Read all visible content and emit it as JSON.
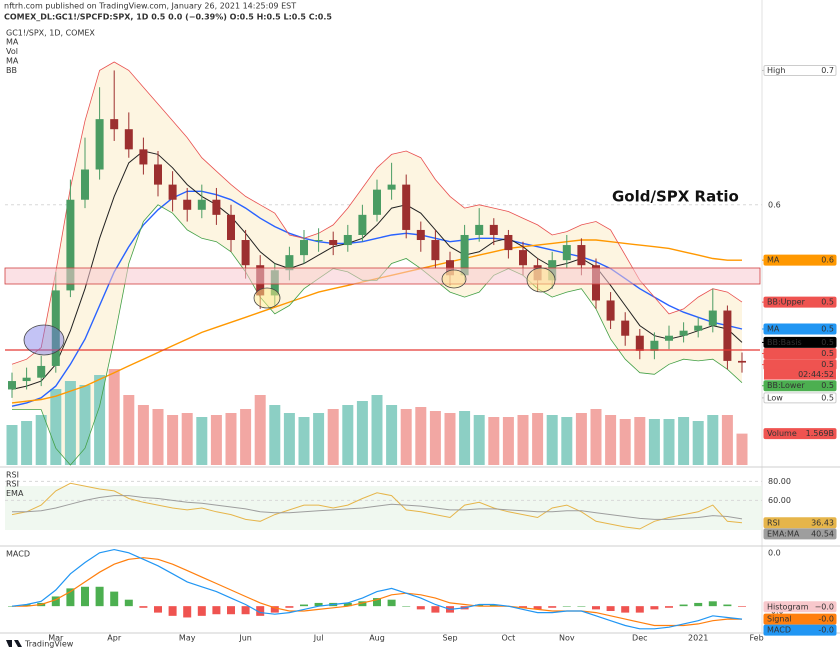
{
  "header": {
    "line1": "nftrh.com published on TradingView.com, January 26, 2021 14:25:09 EST",
    "line2": "COMEX_DL:GC1!/SPCFD:SPX, 1D  0.5 0.0 (−0.39%) O:0.5 H:0.5 L:0.5 C:0.5"
  },
  "footer": {
    "brand": "TradingView"
  },
  "chart_data": [
    {
      "type": "candlestick",
      "title": "GC1!/SPX, 1D, COMEX",
      "legend": [
        "MA",
        "Vol",
        "MA",
        "BB"
      ],
      "annotation": "Gold/SPX Ratio",
      "categories": [
        null,
        null,
        null,
        "Mar",
        null,
        null,
        null,
        "Apr",
        null,
        null,
        null,
        null,
        "May",
        null,
        null,
        null,
        "Jun",
        null,
        null,
        null,
        null,
        "Jul",
        null,
        null,
        null,
        "Aug",
        null,
        null,
        null,
        null,
        "Sep",
        null,
        null,
        null,
        "Oct",
        null,
        null,
        null,
        "Nov",
        null,
        null,
        null,
        null,
        "Dec",
        null,
        null,
        null,
        "2021",
        null,
        null,
        null,
        "Feb"
      ],
      "open": [
        0.49,
        0.495,
        0.497,
        0.504,
        0.549,
        0.603,
        0.621,
        0.651,
        0.645,
        0.633,
        0.624,
        0.612,
        0.603,
        0.597,
        0.603,
        0.594,
        0.579,
        0.564,
        0.546,
        0.561,
        0.57,
        0.579,
        0.579,
        0.576,
        0.582,
        0.594,
        0.609,
        0.612,
        0.585,
        0.579,
        0.567,
        0.558,
        0.582,
        0.588,
        0.582,
        0.573,
        0.564,
        0.555,
        0.567,
        0.576,
        0.564,
        0.543,
        0.531,
        0.522,
        0.513,
        0.519,
        0.522,
        0.525,
        0.528,
        0.537,
        0.507,
        null
      ],
      "high": [
        0.5,
        0.503,
        0.51,
        0.56,
        0.615,
        0.64,
        0.67,
        0.68,
        0.655,
        0.64,
        0.632,
        0.62,
        0.61,
        0.612,
        0.61,
        0.6,
        0.585,
        0.57,
        0.565,
        0.575,
        0.585,
        0.586,
        0.584,
        0.588,
        0.6,
        0.615,
        0.625,
        0.618,
        0.59,
        0.585,
        0.572,
        0.588,
        0.598,
        0.592,
        0.585,
        0.578,
        0.568,
        0.572,
        0.582,
        0.58,
        0.568,
        0.548,
        0.536,
        0.526,
        0.524,
        0.528,
        0.53,
        0.533,
        0.55,
        0.54,
        0.512,
        null
      ],
      "low": [
        0.485,
        0.49,
        0.492,
        0.5,
        0.545,
        0.598,
        0.615,
        0.638,
        0.628,
        0.618,
        0.605,
        0.596,
        0.59,
        0.592,
        0.588,
        0.572,
        0.556,
        0.538,
        0.54,
        0.555,
        0.565,
        0.572,
        0.57,
        0.572,
        0.578,
        0.59,
        0.603,
        0.58,
        0.572,
        0.562,
        0.552,
        0.555,
        0.578,
        0.576,
        0.568,
        0.558,
        0.548,
        0.55,
        0.562,
        0.558,
        0.538,
        0.526,
        0.516,
        0.508,
        0.508,
        0.514,
        0.518,
        0.521,
        0.524,
        0.502,
        0.5,
        null
      ],
      "close": [
        0.495,
        0.497,
        0.504,
        0.549,
        0.603,
        0.621,
        0.651,
        0.645,
        0.633,
        0.624,
        0.612,
        0.603,
        0.597,
        0.603,
        0.594,
        0.579,
        0.564,
        0.546,
        0.561,
        0.57,
        0.579,
        0.579,
        0.576,
        0.582,
        0.594,
        0.609,
        0.612,
        0.585,
        0.579,
        0.567,
        0.558,
        0.582,
        0.588,
        0.582,
        0.573,
        0.564,
        0.555,
        0.567,
        0.576,
        0.564,
        0.543,
        0.531,
        0.522,
        0.513,
        0.519,
        0.522,
        0.525,
        0.528,
        0.537,
        0.507,
        0.506,
        null
      ],
      "colors": {
        "up": "#4a9c63",
        "down": "#9c2f2f"
      },
      "ylim": [
        0.445,
        0.716
      ],
      "yticks": [
        0.6
      ],
      "grid": true,
      "band_fill": "#fdf5e1",
      "series": [
        {
          "color": "#2962ff",
          "width": 1.4,
          "values": [
            0.48,
            0.482,
            0.485,
            0.492,
            0.505,
            0.52,
            0.54,
            0.56,
            0.575,
            0.588,
            0.597,
            0.604,
            0.608,
            0.608,
            0.606,
            0.603,
            0.598,
            0.592,
            0.587,
            0.583,
            0.58,
            0.578,
            0.577,
            0.577,
            0.578,
            0.58,
            0.582,
            0.583,
            0.582,
            0.58,
            0.578,
            0.579,
            0.58,
            0.58,
            0.579,
            0.577,
            0.575,
            0.573,
            0.571,
            0.569,
            0.566,
            0.562,
            0.556,
            0.55,
            0.545,
            0.54,
            0.536,
            0.533,
            0.53,
            0.528,
            0.526,
            null
          ]
        },
        {
          "color": "#ff9800",
          "width": 1.4,
          "values": [
            0.482,
            0.483,
            0.484,
            0.486,
            0.489,
            0.492,
            0.496,
            0.5,
            0.504,
            0.508,
            0.512,
            0.516,
            0.52,
            0.524,
            0.527,
            0.53,
            0.533,
            0.536,
            0.539,
            0.542,
            0.545,
            0.548,
            0.55,
            0.552,
            0.554,
            0.556,
            0.558,
            0.56,
            0.562,
            0.564,
            0.566,
            0.568,
            0.57,
            0.572,
            0.574,
            0.575,
            0.576,
            0.577,
            0.578,
            0.579,
            0.579,
            0.578,
            0.577,
            0.576,
            0.575,
            0.574,
            0.572,
            0.57,
            0.568,
            0.567,
            0.567,
            null
          ]
        },
        {
          "color": "#222222",
          "width": 1,
          "values": [
            0.49,
            0.492,
            0.495,
            0.505,
            0.525,
            0.55,
            0.58,
            0.605,
            0.625,
            0.632,
            0.63,
            0.622,
            0.612,
            0.605,
            0.6,
            0.593,
            0.583,
            0.572,
            0.565,
            0.562,
            0.565,
            0.57,
            0.575,
            0.577,
            0.58,
            0.588,
            0.598,
            0.6,
            0.595,
            0.585,
            0.575,
            0.57,
            0.572,
            0.578,
            0.58,
            0.575,
            0.568,
            0.563,
            0.565,
            0.568,
            0.563,
            0.552,
            0.54,
            0.528,
            0.522,
            0.52,
            0.522,
            0.525,
            0.528,
            0.526,
            0.518,
            null
          ]
        },
        {
          "color": "#e85050",
          "width": 0.8,
          "band": true,
          "values": [
            0.505,
            0.508,
            0.515,
            0.56,
            0.61,
            0.65,
            0.68,
            0.685,
            0.68,
            0.67,
            0.66,
            0.65,
            0.64,
            0.628,
            0.62,
            0.612,
            0.605,
            0.6,
            0.595,
            0.582,
            0.58,
            0.583,
            0.588,
            0.598,
            0.61,
            0.622,
            0.63,
            0.632,
            0.628,
            0.615,
            0.605,
            0.598,
            0.6,
            0.598,
            0.596,
            0.592,
            0.588,
            0.582,
            0.584,
            0.588,
            0.59,
            0.585,
            0.57,
            0.555,
            0.545,
            0.535,
            0.538,
            0.545,
            0.55,
            0.548,
            0.542,
            null
          ]
        },
        {
          "color": "#43a047",
          "width": 0.8,
          "band": true,
          "values": [
            0.478,
            0.478,
            0.478,
            0.455,
            0.445,
            0.455,
            0.48,
            0.52,
            0.565,
            0.59,
            0.6,
            0.595,
            0.585,
            0.58,
            0.578,
            0.572,
            0.56,
            0.545,
            0.535,
            0.54,
            0.55,
            0.556,
            0.562,
            0.56,
            0.555,
            0.555,
            0.565,
            0.568,
            0.562,
            0.555,
            0.548,
            0.545,
            0.548,
            0.558,
            0.562,
            0.558,
            0.55,
            0.545,
            0.548,
            0.55,
            0.538,
            0.52,
            0.508,
            0.5,
            0.499,
            0.505,
            0.508,
            0.507,
            0.508,
            0.502,
            0.494,
            null
          ]
        }
      ],
      "volume": {
        "name": "Volume",
        "value_label": "1.569B",
        "ylim": [
          0,
          5.5
        ],
        "colors": {
          "up": "#8ccfc4",
          "down": "#f2a7a3"
        },
        "values": [
          2.0,
          2.2,
          2.5,
          3.8,
          4.2,
          4.0,
          4.5,
          4.8,
          3.5,
          3.0,
          2.8,
          2.5,
          2.6,
          2.4,
          2.5,
          2.6,
          2.8,
          3.5,
          3.0,
          2.6,
          2.4,
          2.6,
          2.8,
          3.0,
          3.2,
          3.5,
          3.0,
          2.8,
          2.9,
          2.7,
          2.6,
          2.7,
          2.5,
          2.4,
          2.4,
          2.5,
          2.6,
          2.5,
          2.4,
          2.6,
          2.8,
          2.5,
          2.3,
          2.4,
          2.3,
          2.3,
          2.4,
          2.2,
          2.5,
          2.5,
          1.569,
          null
        ]
      },
      "tags": [
        {
          "name": "High",
          "value": 0.68,
          "label": "0.7",
          "color": "#ffffff",
          "text_color": "#555555"
        },
        {
          "name": "MA",
          "value": 0.567,
          "label": "0.6",
          "color": "#ff9800",
          "text_color": "#ffffff"
        },
        {
          "name": "BB:Upper",
          "value": 0.542,
          "label": "0.5",
          "color": "#ef5350",
          "text_color": "#ffffff"
        },
        {
          "name": "MA",
          "value": 0.526,
          "label": "0.5",
          "color": "#2196f3",
          "text_color": "#ffffff"
        },
        {
          "name": "BB:Basis",
          "value": 0.518,
          "label": "0.5",
          "color": "#000000",
          "text_color": "#ffffff"
        },
        {
          "value": 0.512,
          "label": "0.5",
          "color": "#ef5350",
          "text_color": "#ffffff"
        },
        {
          "value": 0.506,
          "label": "0.5",
          "timer": "02:44:52",
          "color": "#ef5350",
          "text_color": "#ffffff"
        },
        {
          "name": "BB:Lower",
          "value": 0.494,
          "label": "0.5",
          "color": "#4caf50",
          "text_color": "#ffffff"
        },
        {
          "name": "Low",
          "value": 0.485,
          "label": "0.5",
          "color": "#ffffff",
          "text_color": "#555555"
        }
      ]
    },
    {
      "type": "line",
      "title": "RSI",
      "legend": [
        "RSI",
        "EMA"
      ],
      "ylim": [
        13,
        92
      ],
      "yticks": [
        {
          "value": 80,
          "label": "80.00"
        },
        {
          "value": 60,
          "label": "60.00"
        }
      ],
      "grid": true,
      "series": [
        {
          "name": "RSI",
          "tag": "RSI",
          "color": "#e6b54a",
          "values": [
            45,
            48,
            55,
            70,
            78,
            75,
            72,
            70,
            62,
            58,
            55,
            52,
            50,
            52,
            48,
            45,
            40,
            38,
            45,
            50,
            55,
            55,
            52,
            55,
            62,
            68,
            65,
            50,
            48,
            45,
            42,
            55,
            58,
            52,
            48,
            45,
            42,
            52,
            55,
            48,
            38,
            35,
            32,
            30,
            38,
            42,
            45,
            48,
            55,
            38,
            36.43,
            null
          ]
        },
        {
          "name": "EMA",
          "tag": "EMA:MA",
          "color": "#9e9e9e",
          "values": [
            48,
            48,
            49,
            52,
            56,
            60,
            63,
            65,
            65,
            63,
            62,
            60,
            58,
            57,
            55,
            53,
            51,
            48,
            47,
            47,
            48,
            49,
            50,
            51,
            52,
            54,
            56,
            55,
            54,
            52,
            50,
            50,
            51,
            51,
            50,
            49,
            48,
            48,
            49,
            49,
            47,
            45,
            43,
            41,
            40,
            40,
            41,
            42,
            44,
            43,
            40.54,
            null
          ]
        }
      ]
    },
    {
      "type": "macd",
      "title": "MACD",
      "ylim": [
        -0.016,
        0.036
      ],
      "yticks": [
        {
          "value": 0.033,
          "label": "0.0"
        },
        {
          "value": -0.003,
          "label": "-0.0"
        }
      ],
      "grid": false,
      "series": [
        {
          "name": "Histogram",
          "kind": "bar",
          "colors": {
            "up": "#4caf50",
            "down": "#ef5350"
          },
          "color": "#f8c8cc",
          "last_label": "−0.0",
          "values": [
            0,
            0.001,
            0.002,
            0.006,
            0.011,
            0.012,
            0.012,
            0.009,
            0.004,
            -0.001,
            -0.004,
            -0.006,
            -0.007,
            -0.006,
            -0.005,
            -0.005,
            -0.005,
            -0.006,
            -0.004,
            -0.001,
            0.001,
            0.002,
            0.002,
            0.002,
            0.003,
            0.005,
            0.004,
            0,
            -0.002,
            -0.004,
            -0.004,
            -0.002,
            0.001,
            0.001,
            0,
            -0.001,
            -0.002,
            -0.001,
            0,
            0,
            -0.002,
            -0.003,
            -0.004,
            -0.004,
            -0.002,
            -0.001,
            0.001,
            0.002,
            0.003,
            0.001,
            -0.0004,
            null
          ]
        },
        {
          "name": "Signal",
          "kind": "line",
          "color": "#ff7f0e",
          "last_label": "-0.0",
          "values": [
            0,
            0,
            0.001,
            0.004,
            0.009,
            0.015,
            0.021,
            0.026,
            0.029,
            0.03,
            0.029,
            0.026,
            0.022,
            0.018,
            0.014,
            0.01,
            0.006,
            0.002,
            -0.001,
            -0.003,
            -0.003,
            -0.002,
            -0.001,
            0,
            0.002,
            0.004,
            0.007,
            0.008,
            0.007,
            0.005,
            0.002,
            0.001,
            0,
            0,
            0,
            -0.001,
            -0.002,
            -0.003,
            -0.003,
            -0.003,
            -0.004,
            -0.006,
            -0.008,
            -0.01,
            -0.012,
            -0.012,
            -0.012,
            -0.011,
            -0.009,
            -0.008,
            -0.008,
            null
          ]
        },
        {
          "name": "MACD",
          "kind": "line",
          "color": "#2196f3",
          "last_label": "-0.0",
          "values": [
            0,
            0.001,
            0.003,
            0.01,
            0.02,
            0.027,
            0.033,
            0.035,
            0.033,
            0.029,
            0.025,
            0.02,
            0.015,
            0.012,
            0.009,
            0.005,
            0.001,
            -0.004,
            -0.005,
            -0.004,
            -0.002,
            0,
            0.001,
            0.002,
            0.005,
            0.009,
            0.011,
            0.008,
            0.005,
            0.001,
            -0.002,
            -0.001,
            0.001,
            0.001,
            0,
            -0.002,
            -0.004,
            -0.004,
            -0.003,
            -0.003,
            -0.006,
            -0.009,
            -0.012,
            -0.014,
            -0.014,
            -0.013,
            -0.011,
            -0.009,
            -0.006,
            -0.007,
            -0.008,
            null
          ]
        }
      ]
    }
  ]
}
